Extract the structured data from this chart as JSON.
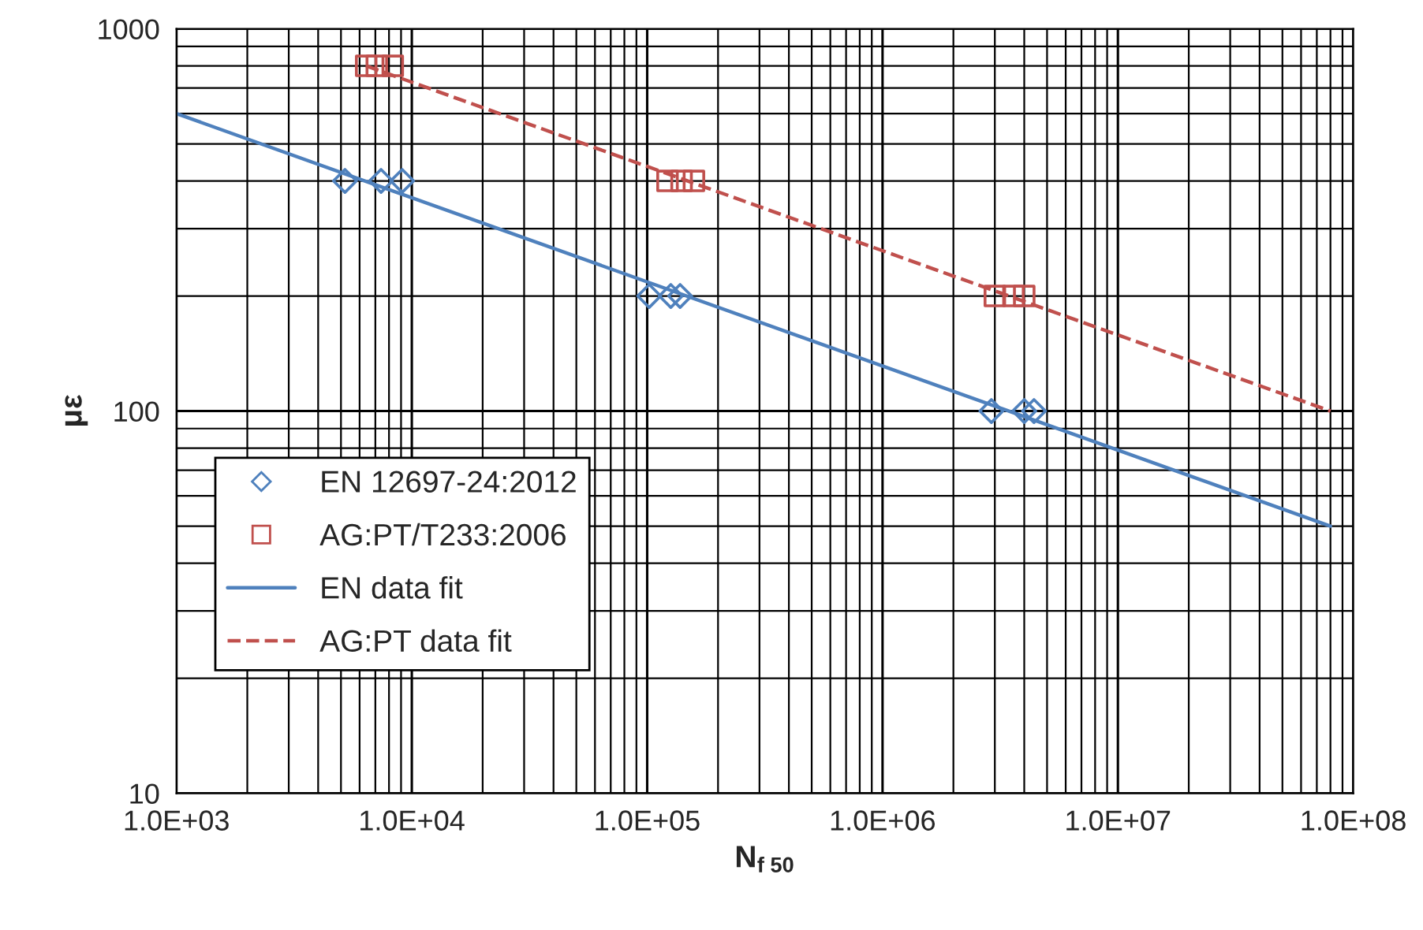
{
  "chart_data": {
    "type": "scatter",
    "xlabel": "N$_{f 50}$",
    "ylabel": "με",
    "log": "xy",
    "grid": true,
    "legend": "left",
    "xlim": [
      1000,
      100000000
    ],
    "ylim": [
      10,
      1000
    ],
    "xticks": [
      {
        "value": 1000,
        "label": "1.0E+03"
      },
      {
        "value": 10000,
        "label": "1.0E+04"
      },
      {
        "value": 100000,
        "label": "1.0E+05"
      },
      {
        "value": 1000000,
        "label": "1.0E+06"
      },
      {
        "value": 10000000,
        "label": "1.0E+07"
      },
      {
        "value": 100000000,
        "label": "1.0E+08"
      }
    ],
    "yticks": [
      10,
      100,
      1000
    ],
    "series": [
      {
        "name": "EN 12697-24:2012",
        "marker": "diamond",
        "color": "#4f81bd",
        "x": [
          5200,
          7400,
          9100,
          102000,
          126000,
          138000,
          2900000,
          4000000,
          4400000
        ],
        "values": [
          400,
          400,
          400,
          200,
          200,
          200,
          100,
          100,
          100
        ]
      },
      {
        "name": "AG:PT/T233:2006",
        "marker": "square",
        "color": "#c0504d",
        "x": [
          6400,
          7100,
          8300,
          122000,
          140000,
          158000,
          3000000,
          3600000,
          4000000
        ],
        "values": [
          800,
          800,
          800,
          400,
          400,
          400,
          200,
          200,
          200
        ]
      },
      {
        "name": "EN data fit",
        "type": "line",
        "line_style": "solid",
        "color": "#4f81bd",
        "x": [
          1000,
          80000000
        ],
        "values": [
          600,
          50
        ]
      },
      {
        "name": "AG:PT data fit",
        "type": "line",
        "line_style": "dashed",
        "color": "#c0504d",
        "x": [
          6400,
          80000000
        ],
        "values": [
          800,
          100
        ]
      }
    ]
  }
}
